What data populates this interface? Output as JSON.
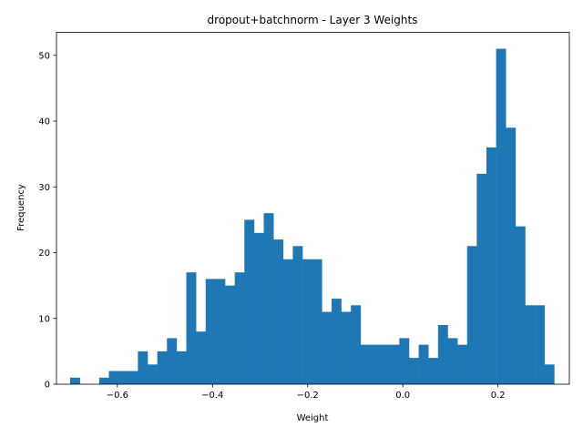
{
  "chart_data": {
    "type": "bar",
    "title": "dropout+batchnorm - Layer 3 Weights",
    "xlabel": "Weight",
    "ylabel": "Frequency",
    "xlim": [
      -0.728,
      0.35
    ],
    "ylim": [
      0,
      53.5
    ],
    "xticks": [
      -0.6,
      -0.4,
      -0.2,
      0.0,
      0.2
    ],
    "xtick_labels": [
      "−0.6",
      "−0.4",
      "−0.2",
      "0.0",
      "0.2"
    ],
    "yticks": [
      0,
      10,
      20,
      30,
      40,
      50
    ],
    "ytick_labels": [
      "0",
      "10",
      "20",
      "30",
      "40",
      "50"
    ],
    "bin_start": -0.6993,
    "bin_width": 0.02035,
    "counts": [
      1,
      0,
      0,
      1,
      2,
      2,
      2,
      5,
      3,
      5,
      7,
      5,
      17,
      8,
      16,
      16,
      15,
      17,
      25,
      23,
      26,
      22,
      19,
      21,
      19,
      19,
      11,
      13,
      11,
      12,
      6,
      6,
      6,
      6,
      7,
      4,
      6,
      4,
      9,
      7,
      6,
      21,
      32,
      36,
      51,
      39,
      24,
      12,
      12,
      3
    ],
    "bar_color": "#1f77b4",
    "grid": false,
    "legend": "none"
  }
}
